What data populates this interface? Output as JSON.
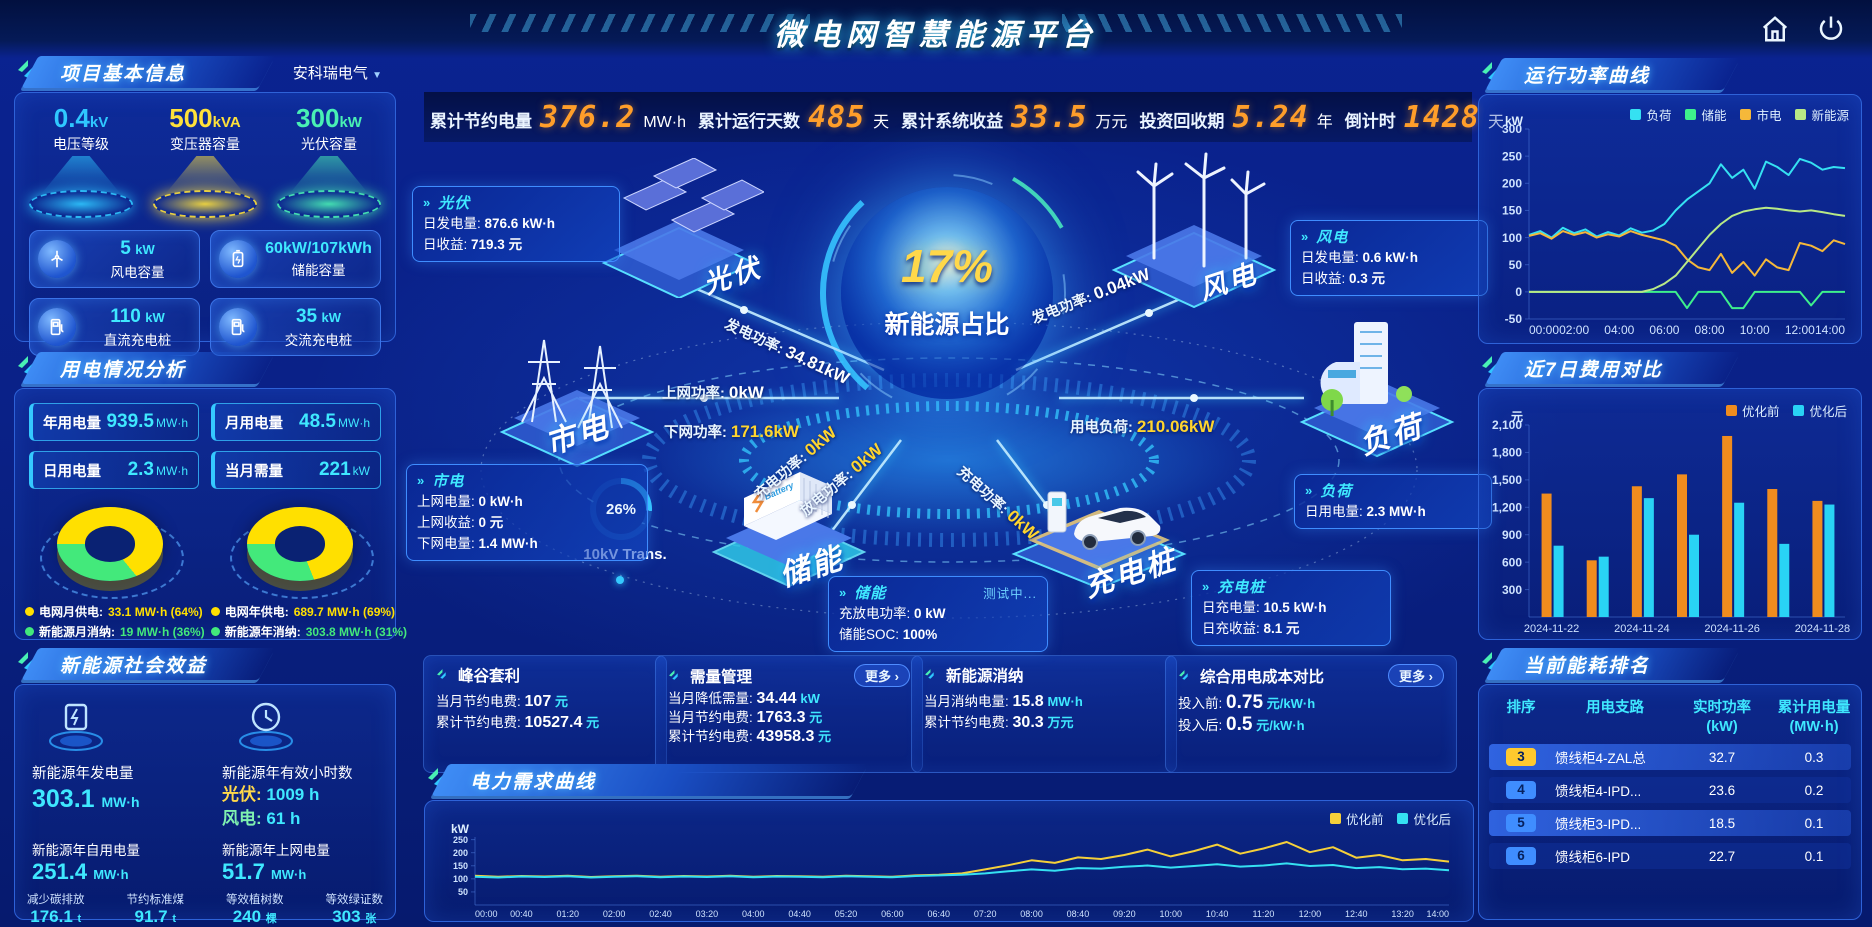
{
  "header": {
    "title": "微电网智慧能源平台"
  },
  "icons": {
    "caret_down": "▼",
    "chevron": "»",
    "more_arrow": "›"
  },
  "top_stats": [
    {
      "label": "累计节约电量",
      "value": "376.2",
      "unit": "MW·h"
    },
    {
      "label": "累计运行天数",
      "value": "485",
      "unit": "天"
    },
    {
      "label": "累计系统收益",
      "value": "33.5",
      "unit": "万元"
    },
    {
      "label": "投资回收期",
      "value": "5.24",
      "unit": "年"
    },
    {
      "label": "倒计时",
      "value": "1428",
      "unit": "天"
    }
  ],
  "project_info": {
    "title": "项目基本信息",
    "company": "安科瑞电气",
    "pedestals": [
      {
        "value": "0.4",
        "unit": "kV",
        "label": "电压等级",
        "color": "#2fc8ff"
      },
      {
        "value": "500",
        "unit": "kVA",
        "label": "变压器容量",
        "color": "#ffe13a"
      },
      {
        "value": "300",
        "unit": "kW",
        "label": "光伏容量",
        "color": "#49f0b4"
      }
    ],
    "cards": [
      {
        "value": "5",
        "unit": "kW",
        "label": "风电容量"
      },
      {
        "value": "60kW/107kWh",
        "unit": "",
        "label": "储能容量"
      },
      {
        "value": "110",
        "unit": "kW",
        "label": "直流充电桩"
      },
      {
        "value": "35",
        "unit": "kW",
        "label": "交流充电桩"
      }
    ]
  },
  "power_usage": {
    "title": "用电情况分析",
    "stats": [
      {
        "label": "年用电量",
        "value": "939.5",
        "unit": "MW·h"
      },
      {
        "label": "月用电量",
        "value": "48.5",
        "unit": "MW·h"
      },
      {
        "label": "日用电量",
        "value": "2.3",
        "unit": "MW·h"
      },
      {
        "label": "当月需量",
        "value": "221",
        "unit": "kW"
      }
    ],
    "donuts": [
      {
        "pct": 64,
        "legend": [
          {
            "label": "电网月供电:",
            "value": "33.1 MW·h (64%)",
            "color": "#ffe000"
          },
          {
            "label": "新能源月消纳:",
            "value": "19 MW·h (36%)",
            "color": "#43e97b"
          }
        ]
      },
      {
        "pct": 69,
        "legend": [
          {
            "label": "电网年供电:",
            "value": "689.7 MW·h (69%)",
            "color": "#ffe000"
          },
          {
            "label": "新能源年消纳:",
            "value": "303.8 MW·h (31%)",
            "color": "#43e97b"
          }
        ]
      }
    ]
  },
  "social_benefit": {
    "title": "新能源社会效益",
    "gen": {
      "label": "新能源年发电量",
      "value": "303.1",
      "unit": "MW·h"
    },
    "hours": {
      "label": "新能源年有效小时数",
      "pv_label": "光伏:",
      "pv_value": "1009 h",
      "wind_label": "风电:",
      "wind_value": "61 h"
    },
    "self_use": {
      "label": "新能源年自用电量",
      "value": "251.4",
      "unit": "MW·h"
    },
    "to_grid": {
      "label": "新能源年上网电量",
      "value": "51.7",
      "unit": "MW·h"
    },
    "small": [
      {
        "label": "减少碳排放",
        "value": "176.1",
        "unit": "t"
      },
      {
        "label": "节约标准煤",
        "value": "91.7",
        "unit": "t"
      },
      {
        "label": "等效植树数",
        "value": "240",
        "unit": "棵"
      },
      {
        "label": "等效绿证数",
        "value": "303",
        "unit": "张"
      }
    ]
  },
  "center": {
    "percent": "17%",
    "percent_label": "新能源占比",
    "node_labels": {
      "pv": "光伏",
      "wind": "风电",
      "grid": "市电",
      "load": "负荷",
      "storage": "储能",
      "charger": "充电桩"
    },
    "flows": [
      {
        "label": "发电功率:",
        "value": "34.81kW",
        "value_color": "#ffffff"
      },
      {
        "label": "上网功率:",
        "value": "0kW",
        "value_color": "#ffffff"
      },
      {
        "label": "下网功率:",
        "value": "171.6kW",
        "value_color": "#ffd52e"
      },
      {
        "label": "充电功率:",
        "value": "0kW",
        "value_color": "#ffd52e"
      },
      {
        "label": "放电功率:",
        "value": "0kW",
        "value_color": "#ffd52e"
      },
      {
        "label": "发电功率:",
        "value": "0.04kW",
        "value_color": "#ffffff"
      },
      {
        "label": "用电负荷:",
        "value": "210.06kW",
        "value_color": "#ffd52e"
      },
      {
        "label": "充电功率:",
        "value": "0kW",
        "value_color": "#ffd52e"
      }
    ],
    "transformer": {
      "pct": "26%",
      "label": "10kV Trans."
    },
    "info_boxes": {
      "pv": {
        "title": "光伏",
        "rows": [
          [
            "日发电量:",
            "876.6 kW·h"
          ],
          [
            "日收益:",
            "719.3 元"
          ]
        ]
      },
      "grid": {
        "title": "市电",
        "rows": [
          [
            "上网电量:",
            "0 kW·h"
          ],
          [
            "上网收益:",
            "0 元"
          ],
          [
            "下网电量:",
            "1.4 MW·h"
          ]
        ]
      },
      "wind": {
        "title": "风电",
        "rows": [
          [
            "日发电量:",
            "0.6 kW·h"
          ],
          [
            "日收益:",
            "0.3 元"
          ]
        ]
      },
      "load": {
        "title": "负荷",
        "rows": [
          [
            "日用电量:",
            "2.3 MW·h"
          ]
        ]
      },
      "storage": {
        "title": "储能",
        "status": "测试中...",
        "rows": [
          [
            "充放电功率:",
            "0 kW"
          ],
          [
            "储能SOC:",
            "100%"
          ]
        ]
      },
      "charger": {
        "title": "充电桩",
        "rows": [
          [
            "日充电量:",
            "10.5 kW·h"
          ],
          [
            "日充收益:",
            "8.1 元"
          ]
        ]
      }
    }
  },
  "bottom_cards": [
    {
      "title": "峰谷套利",
      "more_label": "",
      "rows": [
        [
          "当月节约电费:",
          "107",
          "元"
        ],
        [
          "累计节约电费:",
          "10527.4",
          "元"
        ]
      ]
    },
    {
      "title": "需量管理",
      "more_label": "更多 ›",
      "rows": [
        [
          "当月降低需量:",
          "34.44",
          "kW"
        ],
        [
          "当月节约电费:",
          "1763.3",
          "元"
        ],
        [
          "累计节约电费:",
          "43958.3",
          "元"
        ]
      ]
    },
    {
      "title": "新能源消纳",
      "more_label": "",
      "rows": [
        [
          "当月消纳电量:",
          "15.8",
          "MW·h"
        ],
        [
          "累计节约电费:",
          "30.3",
          "万元"
        ]
      ]
    },
    {
      "title": "综合用电成本对比",
      "more_label": "更多 ›",
      "rows": [
        [
          "投入前:",
          "0.75",
          "元/kW·h"
        ],
        [
          "投入后:",
          "0.5",
          "元/kW·h"
        ]
      ]
    }
  ],
  "panel_titles": {
    "run_power": "运行功率曲线",
    "cost7": "近7日费用对比",
    "ranking": "当前能耗排名",
    "demand": "电力需求曲线"
  },
  "chart_data": [
    {
      "id": "power-curve",
      "type": "line",
      "title": "运行功率曲线",
      "ylabel": "kW",
      "ylim": [
        -50,
        300
      ],
      "yticks": [
        -50,
        0,
        50,
        100,
        150,
        200,
        250,
        300
      ],
      "xticks": [
        "00:00",
        "02:00",
        "04:00",
        "06:00",
        "08:00",
        "10:00",
        "12:00",
        "14:00"
      ],
      "grid": false,
      "legend_position": "top-right",
      "tick_font": 12,
      "series": [
        {
          "name": "负荷",
          "color": "#35e1f2",
          "values": [
            105,
            112,
            100,
            118,
            108,
            115,
            102,
            110,
            104,
            117,
            109,
            113,
            125,
            150,
            170,
            185,
            200,
            235,
            210,
            225,
            190,
            240,
            230,
            215,
            245,
            238,
            225,
            230,
            228
          ]
        },
        {
          "name": "储能",
          "color": "#3ef08c",
          "values": [
            0,
            0,
            0,
            0,
            0,
            0,
            0,
            0,
            0,
            0,
            0,
            0,
            0,
            0,
            -30,
            0,
            0,
            0,
            -30,
            -30,
            0,
            0,
            0,
            0,
            0,
            -25,
            0,
            0,
            0
          ]
        },
        {
          "name": "市电",
          "color": "#f5b83a",
          "values": [
            103,
            108,
            98,
            112,
            105,
            110,
            100,
            106,
            102,
            112,
            105,
            100,
            95,
            85,
            60,
            45,
            40,
            70,
            35,
            55,
            30,
            60,
            45,
            40,
            90,
            85,
            75,
            95,
            88
          ]
        },
        {
          "name": "新能源",
          "color": "#b8e986",
          "values": [
            0,
            0,
            0,
            0,
            0,
            0,
            0,
            0,
            0,
            0,
            0,
            5,
            15,
            30,
            55,
            80,
            105,
            125,
            140,
            148,
            152,
            155,
            153,
            150,
            148,
            150,
            147,
            143,
            140
          ]
        }
      ]
    },
    {
      "id": "cost-compare",
      "type": "bar",
      "title": "近7日费用对比",
      "ylabel": "元",
      "ylim": [
        0,
        2100
      ],
      "yticks": [
        300,
        600,
        900,
        1200,
        1500,
        1800,
        2100
      ],
      "categories": [
        "2024-11-22",
        "2024-11-23",
        "2024-11-24",
        "2024-11-25",
        "2024-11-26",
        "2024-11-27",
        "2024-11-28"
      ],
      "xtick_labels": [
        "2024-11-22",
        "2024-11-24",
        "2024-11-26",
        "2024-11-28"
      ],
      "grid": false,
      "legend_position": "top-right",
      "tick_font": 12,
      "series": [
        {
          "name": "优化前",
          "color": "#f08c1e",
          "values": [
            1350,
            620,
            1430,
            1560,
            1980,
            1400,
            1270
          ]
        },
        {
          "name": "优化后",
          "color": "#29d3f5",
          "values": [
            780,
            660,
            1300,
            900,
            1250,
            800,
            1230
          ]
        }
      ]
    },
    {
      "id": "demand-curve",
      "type": "line",
      "title": "电力需求曲线",
      "ylabel": "kW",
      "ylim": [
        0,
        260
      ],
      "yticks": [
        50,
        100,
        150,
        200,
        250
      ],
      "xticks": [
        "00:00",
        "00:40",
        "01:20",
        "02:00",
        "02:40",
        "03:20",
        "04:00",
        "04:40",
        "05:20",
        "06:00",
        "06:40",
        "07:20",
        "08:00",
        "08:40",
        "09:20",
        "10:00",
        "10:40",
        "11:20",
        "12:00",
        "12:40",
        "13:20",
        "14:00"
      ],
      "grid": false,
      "legend_position": "top-right",
      "tick_font": 9,
      "series": [
        {
          "name": "优化前",
          "color": "#f5d03a",
          "values": [
            112,
            108,
            111,
            109,
            112,
            107,
            110,
            112,
            108,
            111,
            109,
            112,
            108,
            111,
            110,
            108,
            112,
            110,
            108,
            113,
            116,
            121,
            136,
            152,
            171,
            161,
            182,
            176,
            191,
            212,
            186,
            206,
            231,
            196,
            216,
            241,
            202,
            221,
            181,
            191,
            171,
            176,
            166
          ]
        },
        {
          "name": "优化后",
          "color": "#35e1f2",
          "values": [
            108,
            105,
            109,
            107,
            110,
            105,
            108,
            110,
            106,
            109,
            107,
            110,
            106,
            109,
            108,
            106,
            110,
            108,
            106,
            111,
            113,
            116,
            121,
            129,
            136,
            131,
            141,
            139,
            146,
            151,
            143,
            149,
            156,
            147,
            151,
            159,
            149,
            153,
            141,
            145,
            137,
            139,
            133
          ]
        }
      ]
    }
  ],
  "ranking": {
    "title": "当前能耗排名",
    "columns": {
      "rank": "排序",
      "branch": "用电支路",
      "power1": "实时功率",
      "power2": "(kW)",
      "energy1": "累计用电量",
      "energy2": "(MW·h)"
    },
    "rows": [
      {
        "rank": "3",
        "branch": "馈线柜4-ZAL总",
        "power": "32.7",
        "energy": "0.3",
        "badge": "#ffc92e"
      },
      {
        "rank": "4",
        "branch": "馈线柜4-IPD...",
        "power": "23.6",
        "energy": "0.2",
        "badge": "#3f8dff"
      },
      {
        "rank": "5",
        "branch": "馈线柜3-IPD...",
        "power": "18.5",
        "energy": "0.1",
        "badge": "#3f8dff"
      },
      {
        "rank": "6",
        "branch": "馈线柜6-IPD",
        "power": "22.7",
        "energy": "0.1",
        "badge": "#3f8dff"
      }
    ]
  }
}
